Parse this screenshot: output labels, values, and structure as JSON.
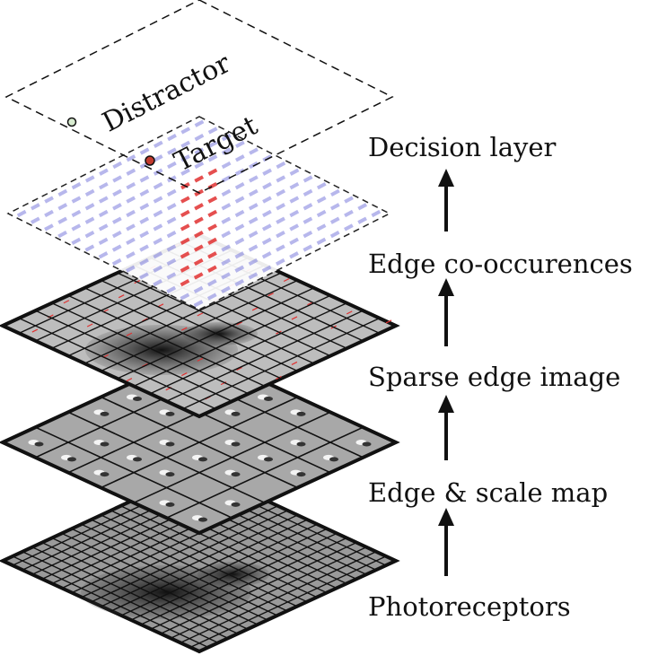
{
  "layers": [
    {
      "id": "decision",
      "label": "Decision layer",
      "target_label": "Target",
      "distractor_label": "Distractor"
    },
    {
      "id": "cooccurrence",
      "label": "Edge co-occurences"
    },
    {
      "id": "sparse",
      "label": "Sparse edge image"
    },
    {
      "id": "edge_scale",
      "label": "Edge & scale map"
    },
    {
      "id": "photoreceptors",
      "label": "Photoreceptors"
    }
  ],
  "colors": {
    "frame": "#111111",
    "excitatory": "#e03030",
    "inhibitory": "#7b7bdc",
    "target_dot": "#c23a2e",
    "distractor_dot": "#5aa05a"
  }
}
